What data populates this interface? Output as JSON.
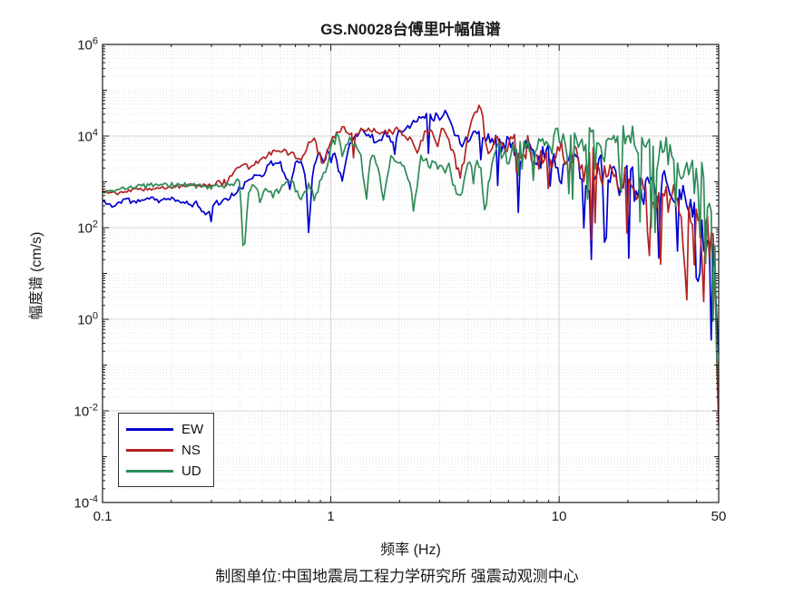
{
  "figure": {
    "background": "#ffffff",
    "axis_color": "#1a1a1a",
    "grid_major_color": "#d4d4d4",
    "grid_minor_color": "#e2e2e2"
  },
  "chart_data": {
    "type": "line",
    "title": "GS.N0028台傅里叶幅值谱",
    "xlabel": "频率 (Hz)",
    "ylabel": "幅度谱 (cm/s)",
    "caption": "制图单位:中国地震局工程力学研究所 强震动观测中心",
    "x_scale": "log",
    "y_scale": "log",
    "xlim": [
      0.1,
      50
    ],
    "ylim": [
      0.0001,
      1000000
    ],
    "x_major_ticks": [
      0.1,
      1,
      10,
      50
    ],
    "x_tick_labels": [
      "0.1",
      "1",
      "10",
      "50"
    ],
    "x_minor_ticks": [
      0.2,
      0.3,
      0.4,
      0.5,
      0.6,
      0.7,
      0.8,
      0.9,
      2,
      3,
      4,
      5,
      6,
      7,
      8,
      9,
      20,
      30,
      40
    ],
    "y_major_exponents": [
      6,
      4,
      2,
      0,
      -2,
      -4
    ],
    "y_minor_decade_exponents": [
      5,
      3,
      1,
      -1,
      -3
    ],
    "y_minor_multiples": [
      2,
      3,
      4,
      5,
      6,
      7,
      8,
      9
    ],
    "grid": {
      "major": true,
      "minor": true
    },
    "legend": {
      "position": "bottom-left",
      "entries": [
        "EW",
        "NS",
        "UD"
      ]
    },
    "series": [
      {
        "name": "EW",
        "color": "#0000cd",
        "seed": 11,
        "anchors": [
          [
            0.1,
            370
          ],
          [
            0.112,
            300
          ],
          [
            0.125,
            420
          ],
          [
            0.14,
            360
          ],
          [
            0.16,
            440
          ],
          [
            0.18,
            390
          ],
          [
            0.2,
            420
          ],
          [
            0.22,
            370
          ],
          [
            0.24,
            340
          ],
          [
            0.26,
            320
          ],
          [
            0.285,
            185
          ],
          [
            0.31,
            340
          ],
          [
            0.34,
            400
          ],
          [
            0.38,
            520
          ],
          [
            0.42,
            900
          ],
          [
            0.46,
            1400
          ],
          [
            0.5,
            1500
          ],
          [
            0.55,
            2800
          ],
          [
            0.6,
            2400
          ],
          [
            0.63,
            1500
          ],
          [
            0.66,
            800
          ],
          [
            0.7,
            2400
          ],
          [
            0.74,
            2800
          ],
          [
            0.78,
            1200
          ],
          [
            0.8,
            75
          ],
          [
            0.83,
            1500
          ],
          [
            0.88,
            4200
          ],
          [
            0.93,
            3200
          ],
          [
            0.99,
            5200
          ],
          [
            1.05,
            4200
          ],
          [
            1.12,
            900
          ],
          [
            1.2,
            6500
          ],
          [
            1.3,
            11000
          ],
          [
            1.42,
            13000
          ],
          [
            1.55,
            8000
          ],
          [
            1.7,
            11000
          ],
          [
            1.85,
            8500
          ],
          [
            2.0,
            12000
          ],
          [
            2.2,
            16000
          ],
          [
            2.45,
            26000
          ],
          [
            2.7,
            32000
          ],
          [
            2.95,
            25000
          ],
          [
            3.2,
            31000
          ],
          [
            3.45,
            15000
          ],
          [
            3.7,
            7000
          ],
          [
            3.95,
            9000
          ],
          [
            4.3,
            13000
          ],
          [
            4.7,
            8000
          ],
          [
            5.1,
            11000
          ],
          [
            5.6,
            5000
          ],
          [
            6.1,
            9000
          ],
          [
            6.6,
            2500
          ],
          [
            7.2,
            7000
          ],
          [
            7.9,
            2200
          ],
          [
            8.7,
            6000
          ],
          [
            9.5,
            2800
          ],
          [
            10.3,
            1300
          ],
          [
            11.2,
            4500
          ],
          [
            12.2,
            2000
          ],
          [
            13.3,
            900
          ],
          [
            14.5,
            2800
          ],
          [
            16,
            1200
          ],
          [
            17.5,
            2200
          ],
          [
            19,
            700
          ],
          [
            21,
            1600
          ],
          [
            23,
            500
          ],
          [
            25,
            1100
          ],
          [
            27,
            400
          ],
          [
            29.5,
            900
          ],
          [
            32,
            300
          ],
          [
            35,
            600
          ],
          [
            38,
            200
          ],
          [
            40,
            300
          ],
          [
            41,
            3
          ],
          [
            42,
            150
          ],
          [
            43.5,
            8
          ],
          [
            44.5,
            90
          ],
          [
            46,
            25
          ],
          [
            47.2,
            50
          ],
          [
            48.2,
            6
          ],
          [
            49,
            18
          ],
          [
            49.6,
            4
          ],
          [
            50,
            2.5
          ]
        ],
        "noise_profile": [
          [
            0.1,
            0.05
          ],
          [
            0.4,
            0.07
          ],
          [
            1,
            0.1
          ],
          [
            3,
            0.1
          ],
          [
            6,
            0.22
          ],
          [
            10,
            0.32
          ],
          [
            20,
            0.38
          ],
          [
            50,
            0.42
          ]
        ]
      },
      {
        "name": "NS",
        "color": "#b22222",
        "seed": 22,
        "anchors": [
          [
            0.1,
            650
          ],
          [
            0.115,
            580
          ],
          [
            0.13,
            680
          ],
          [
            0.15,
            720
          ],
          [
            0.17,
            690
          ],
          [
            0.2,
            780
          ],
          [
            0.23,
            820
          ],
          [
            0.26,
            840
          ],
          [
            0.29,
            860
          ],
          [
            0.32,
            1000
          ],
          [
            0.35,
            950
          ],
          [
            0.38,
            1700
          ],
          [
            0.41,
            2400
          ],
          [
            0.44,
            2100
          ],
          [
            0.48,
            2800
          ],
          [
            0.52,
            3600
          ],
          [
            0.57,
            4800
          ],
          [
            0.62,
            5000
          ],
          [
            0.67,
            4000
          ],
          [
            0.72,
            3000
          ],
          [
            0.76,
            3400
          ],
          [
            0.8,
            7000
          ],
          [
            0.84,
            8800
          ],
          [
            0.88,
            4600
          ],
          [
            0.93,
            2400
          ],
          [
            1.0,
            8800
          ],
          [
            1.08,
            12000
          ],
          [
            1.17,
            13000
          ],
          [
            1.27,
            10500
          ],
          [
            1.38,
            14000
          ],
          [
            1.5,
            11500
          ],
          [
            1.63,
            14000
          ],
          [
            1.77,
            12000
          ],
          [
            1.92,
            14500
          ],
          [
            2.08,
            10000
          ],
          [
            2.25,
            8000
          ],
          [
            2.38,
            3800
          ],
          [
            2.55,
            12000
          ],
          [
            2.75,
            14500
          ],
          [
            2.92,
            6000
          ],
          [
            3.1,
            16000
          ],
          [
            3.3,
            8000
          ],
          [
            3.5,
            3200
          ],
          [
            3.7,
            1100
          ],
          [
            3.95,
            9000
          ],
          [
            4.2,
            28000
          ],
          [
            4.4,
            42000
          ],
          [
            4.6,
            30000
          ],
          [
            4.8,
            8000
          ],
          [
            5.0,
            4000
          ],
          [
            5.35,
            9000
          ],
          [
            5.8,
            4500
          ],
          [
            6.3,
            8000
          ],
          [
            6.8,
            2800
          ],
          [
            7.4,
            6500
          ],
          [
            8.0,
            2200
          ],
          [
            8.7,
            5500
          ],
          [
            9.4,
            2800
          ],
          [
            10.2,
            6000
          ],
          [
            11,
            1800
          ],
          [
            12,
            4200
          ],
          [
            13,
            1300
          ],
          [
            14.2,
            3200
          ],
          [
            15.5,
            900
          ],
          [
            17,
            2300
          ],
          [
            18.5,
            600
          ],
          [
            20,
            1700
          ],
          [
            22,
            450
          ],
          [
            24,
            1100
          ],
          [
            26,
            350
          ],
          [
            28,
            800
          ],
          [
            30.5,
            250
          ],
          [
            33,
            600
          ],
          [
            35.5,
            12
          ],
          [
            36.5,
            250
          ],
          [
            38,
            80
          ],
          [
            40,
            160
          ],
          [
            42,
            40
          ],
          [
            44,
            120
          ],
          [
            45.5,
            25
          ],
          [
            47,
            90
          ],
          [
            48.3,
            15
          ],
          [
            49.2,
            30
          ],
          [
            49.7,
            0.5
          ],
          [
            50,
            0.005
          ]
        ],
        "noise_profile": [
          [
            0.1,
            0.04
          ],
          [
            0.4,
            0.07
          ],
          [
            1,
            0.1
          ],
          [
            3,
            0.1
          ],
          [
            6,
            0.22
          ],
          [
            10,
            0.32
          ],
          [
            20,
            0.38
          ],
          [
            50,
            0.42
          ]
        ]
      },
      {
        "name": "UD",
        "color": "#2e8b57",
        "seed": 33,
        "anchors": [
          [
            0.1,
            600
          ],
          [
            0.12,
            680
          ],
          [
            0.14,
            800
          ],
          [
            0.17,
            840
          ],
          [
            0.2,
            820
          ],
          [
            0.24,
            860
          ],
          [
            0.28,
            800
          ],
          [
            0.31,
            840
          ],
          [
            0.34,
            780
          ],
          [
            0.37,
            920
          ],
          [
            0.4,
            1050
          ],
          [
            0.415,
            20
          ],
          [
            0.435,
            600
          ],
          [
            0.46,
            900
          ],
          [
            0.49,
            420
          ],
          [
            0.52,
            700
          ],
          [
            0.56,
            480
          ],
          [
            0.6,
            650
          ],
          [
            0.64,
            1200
          ],
          [
            0.68,
            900
          ],
          [
            0.72,
            600
          ],
          [
            0.76,
            420
          ],
          [
            0.8,
            950
          ],
          [
            0.85,
            400
          ],
          [
            0.9,
            1100
          ],
          [
            0.96,
            2200
          ],
          [
            1.02,
            7500
          ],
          [
            1.07,
            9500
          ],
          [
            1.13,
            3500
          ],
          [
            1.2,
            8500
          ],
          [
            1.28,
            5500
          ],
          [
            1.35,
            4200
          ],
          [
            1.43,
            360
          ],
          [
            1.5,
            3800
          ],
          [
            1.6,
            2800
          ],
          [
            1.7,
            350
          ],
          [
            1.82,
            3400
          ],
          [
            1.95,
            2800
          ],
          [
            2.1,
            2400
          ],
          [
            2.3,
            300
          ],
          [
            2.5,
            3400
          ],
          [
            2.7,
            2800
          ],
          [
            2.9,
            2200
          ],
          [
            3.1,
            1800
          ],
          [
            3.3,
            2600
          ],
          [
            3.5,
            600
          ],
          [
            3.7,
            400
          ],
          [
            3.95,
            2400
          ],
          [
            4.2,
            3200
          ],
          [
            4.5,
            2200
          ],
          [
            4.75,
            250
          ],
          [
            5.1,
            3800
          ],
          [
            5.5,
            5200
          ],
          [
            6.0,
            2800
          ],
          [
            6.5,
            5500
          ],
          [
            7.0,
            7500
          ],
          [
            7.6,
            4500
          ],
          [
            8.2,
            8500
          ],
          [
            9.0,
            5500
          ],
          [
            9.8,
            9500
          ],
          [
            10.8,
            5500
          ],
          [
            11.8,
            9000
          ],
          [
            13,
            6500
          ],
          [
            14.2,
            10500
          ],
          [
            15.5,
            5500
          ],
          [
            17,
            9500
          ],
          [
            18.5,
            6500
          ],
          [
            20,
            10500
          ],
          [
            22,
            5500
          ],
          [
            24,
            8500
          ],
          [
            26,
            3800
          ],
          [
            28,
            6500
          ],
          [
            30,
            2800
          ],
          [
            32.5,
            4500
          ],
          [
            35,
            1800
          ],
          [
            37.5,
            2200
          ],
          [
            40,
            900
          ],
          [
            42,
            1100
          ],
          [
            44,
            380
          ],
          [
            46,
            260
          ],
          [
            47.5,
            90
          ],
          [
            48.8,
            25
          ],
          [
            49.5,
            1
          ],
          [
            50,
            0.07
          ]
        ],
        "noise_profile": [
          [
            0.1,
            0.04
          ],
          [
            0.4,
            0.08
          ],
          [
            1,
            0.12
          ],
          [
            3,
            0.15
          ],
          [
            6,
            0.2
          ],
          [
            10,
            0.28
          ],
          [
            20,
            0.33
          ],
          [
            50,
            0.4
          ]
        ]
      }
    ],
    "rendering": {
      "samples": 330,
      "line_width": 1.7,
      "spike_prob_profile": [
        [
          0.1,
          0
        ],
        [
          4,
          0.01
        ],
        [
          6,
          0.06
        ],
        [
          10,
          0.1
        ],
        [
          50,
          0.16
        ]
      ],
      "spike_depth_profile": [
        [
          0.1,
          0.4
        ],
        [
          6,
          0.7
        ],
        [
          10,
          1.1
        ],
        [
          50,
          1.5
        ]
      ]
    }
  }
}
